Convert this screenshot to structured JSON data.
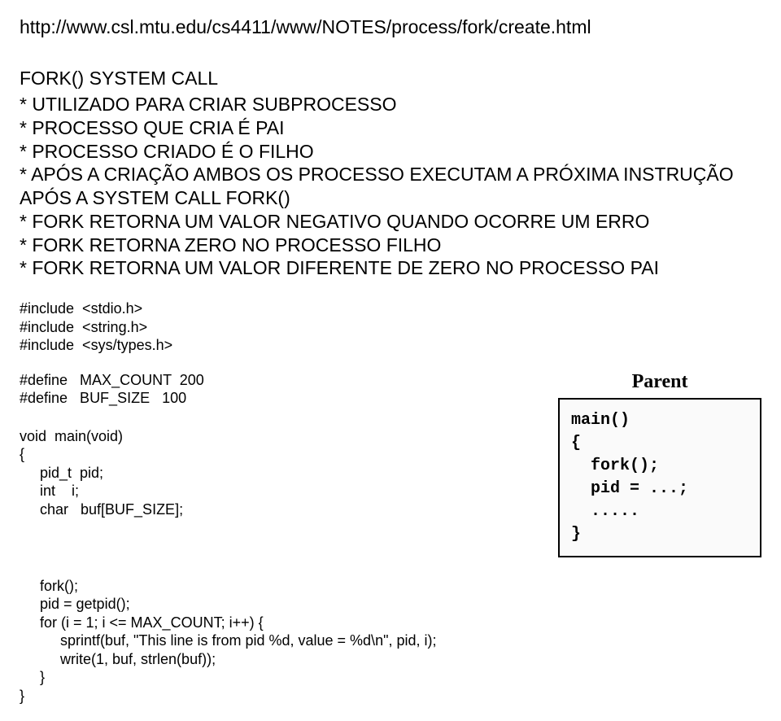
{
  "url": "http://www.csl.mtu.edu/cs4411/www/NOTES/process/fork/create.html",
  "heading": "FORK() SYSTEM CALL",
  "bullets": [
    "* UTILIZADO PARA CRIAR SUBPROCESSO",
    "* PROCESSO QUE CRIA É PAI",
    "* PROCESSO CRIADO É O FILHO",
    "* APÓS A CRIAÇÃO AMBOS OS PROCESSO EXECUTAM A PRÓXIMA INSTRUÇÃO APÓS A SYSTEM CALL FORK()",
    "* FORK RETORNA UM VALOR NEGATIVO QUANDO OCORRE UM ERRO",
    "* FORK RETORNA ZERO NO PROCESSO FILHO",
    "* FORK RETORNA UM VALOR DIFERENTE DE ZERO NO PROCESSO PAI"
  ],
  "code": {
    "includes": "#include  <stdio.h>\n#include  <string.h>\n#include  <sys/types.h>",
    "defines": "#define   MAX_COUNT  200\n#define   BUF_SIZE   100",
    "main_decl": "void  main(void)\n{\n     pid_t  pid;\n     int    i;\n     char   buf[BUF_SIZE];",
    "body": "     fork();\n     pid = getpid();\n     for (i = 1; i <= MAX_COUNT; i++) {\n          sprintf(buf, \"This line is from pid %d, value = %d\\n\", pid, i);\n          write(1, buf, strlen(buf));\n     }\n}"
  },
  "figure": {
    "label": "Parent",
    "box_text": "main()\n{\n  fork();\n  pid = ...;\n  .....\n}"
  }
}
